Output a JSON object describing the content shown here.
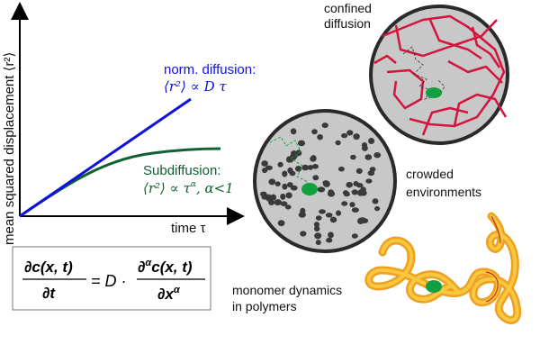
{
  "plot": {
    "ylabel": "mean squared displacement ⟨r²⟩",
    "xlabel": "time τ",
    "normal": {
      "title": "norm. diffusion:",
      "formula": "⟨r²⟩ ∝ D τ",
      "color": "#1010dd"
    },
    "sub": {
      "title": "Subdiffusion:",
      "formula": "⟨r²⟩ ∝ τ",
      "alpha_exp": "α",
      "condition": ",  α<1",
      "color": "#0f6030"
    }
  },
  "equation": {
    "lhs_num": "∂c(x, t)",
    "lhs_den": "∂t",
    "eq": "= D ·",
    "rhs_num": "∂ c(x, t)",
    "rhs_num_exp": "α",
    "rhs_den": "∂x",
    "rhs_den_exp": "α"
  },
  "labels": {
    "confined_1": "confined",
    "confined_2": "diffusion",
    "crowded_1": "crowded",
    "crowded_2": "environments",
    "polymer_1": "monomer dynamics",
    "polymer_2": "in polymers"
  },
  "colors": {
    "network": "#d4143c",
    "circle_fill": "#c8c8c8",
    "obstacle": "#3a3a3a",
    "tracer": "#10a040",
    "polymer_outer": "#f0a020",
    "polymer_inner": "#f8c840"
  }
}
